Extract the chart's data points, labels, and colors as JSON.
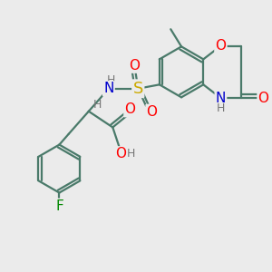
{
  "bg_color": "#ebebeb",
  "bond_color": "#4a7a6a",
  "bond_width": 1.6,
  "atom_colors": {
    "O": "#ff0000",
    "N": "#0000cc",
    "S": "#ccaa00",
    "F": "#008800",
    "H": "#777777",
    "C": "#4a7a6a"
  },
  "font_size": 10
}
